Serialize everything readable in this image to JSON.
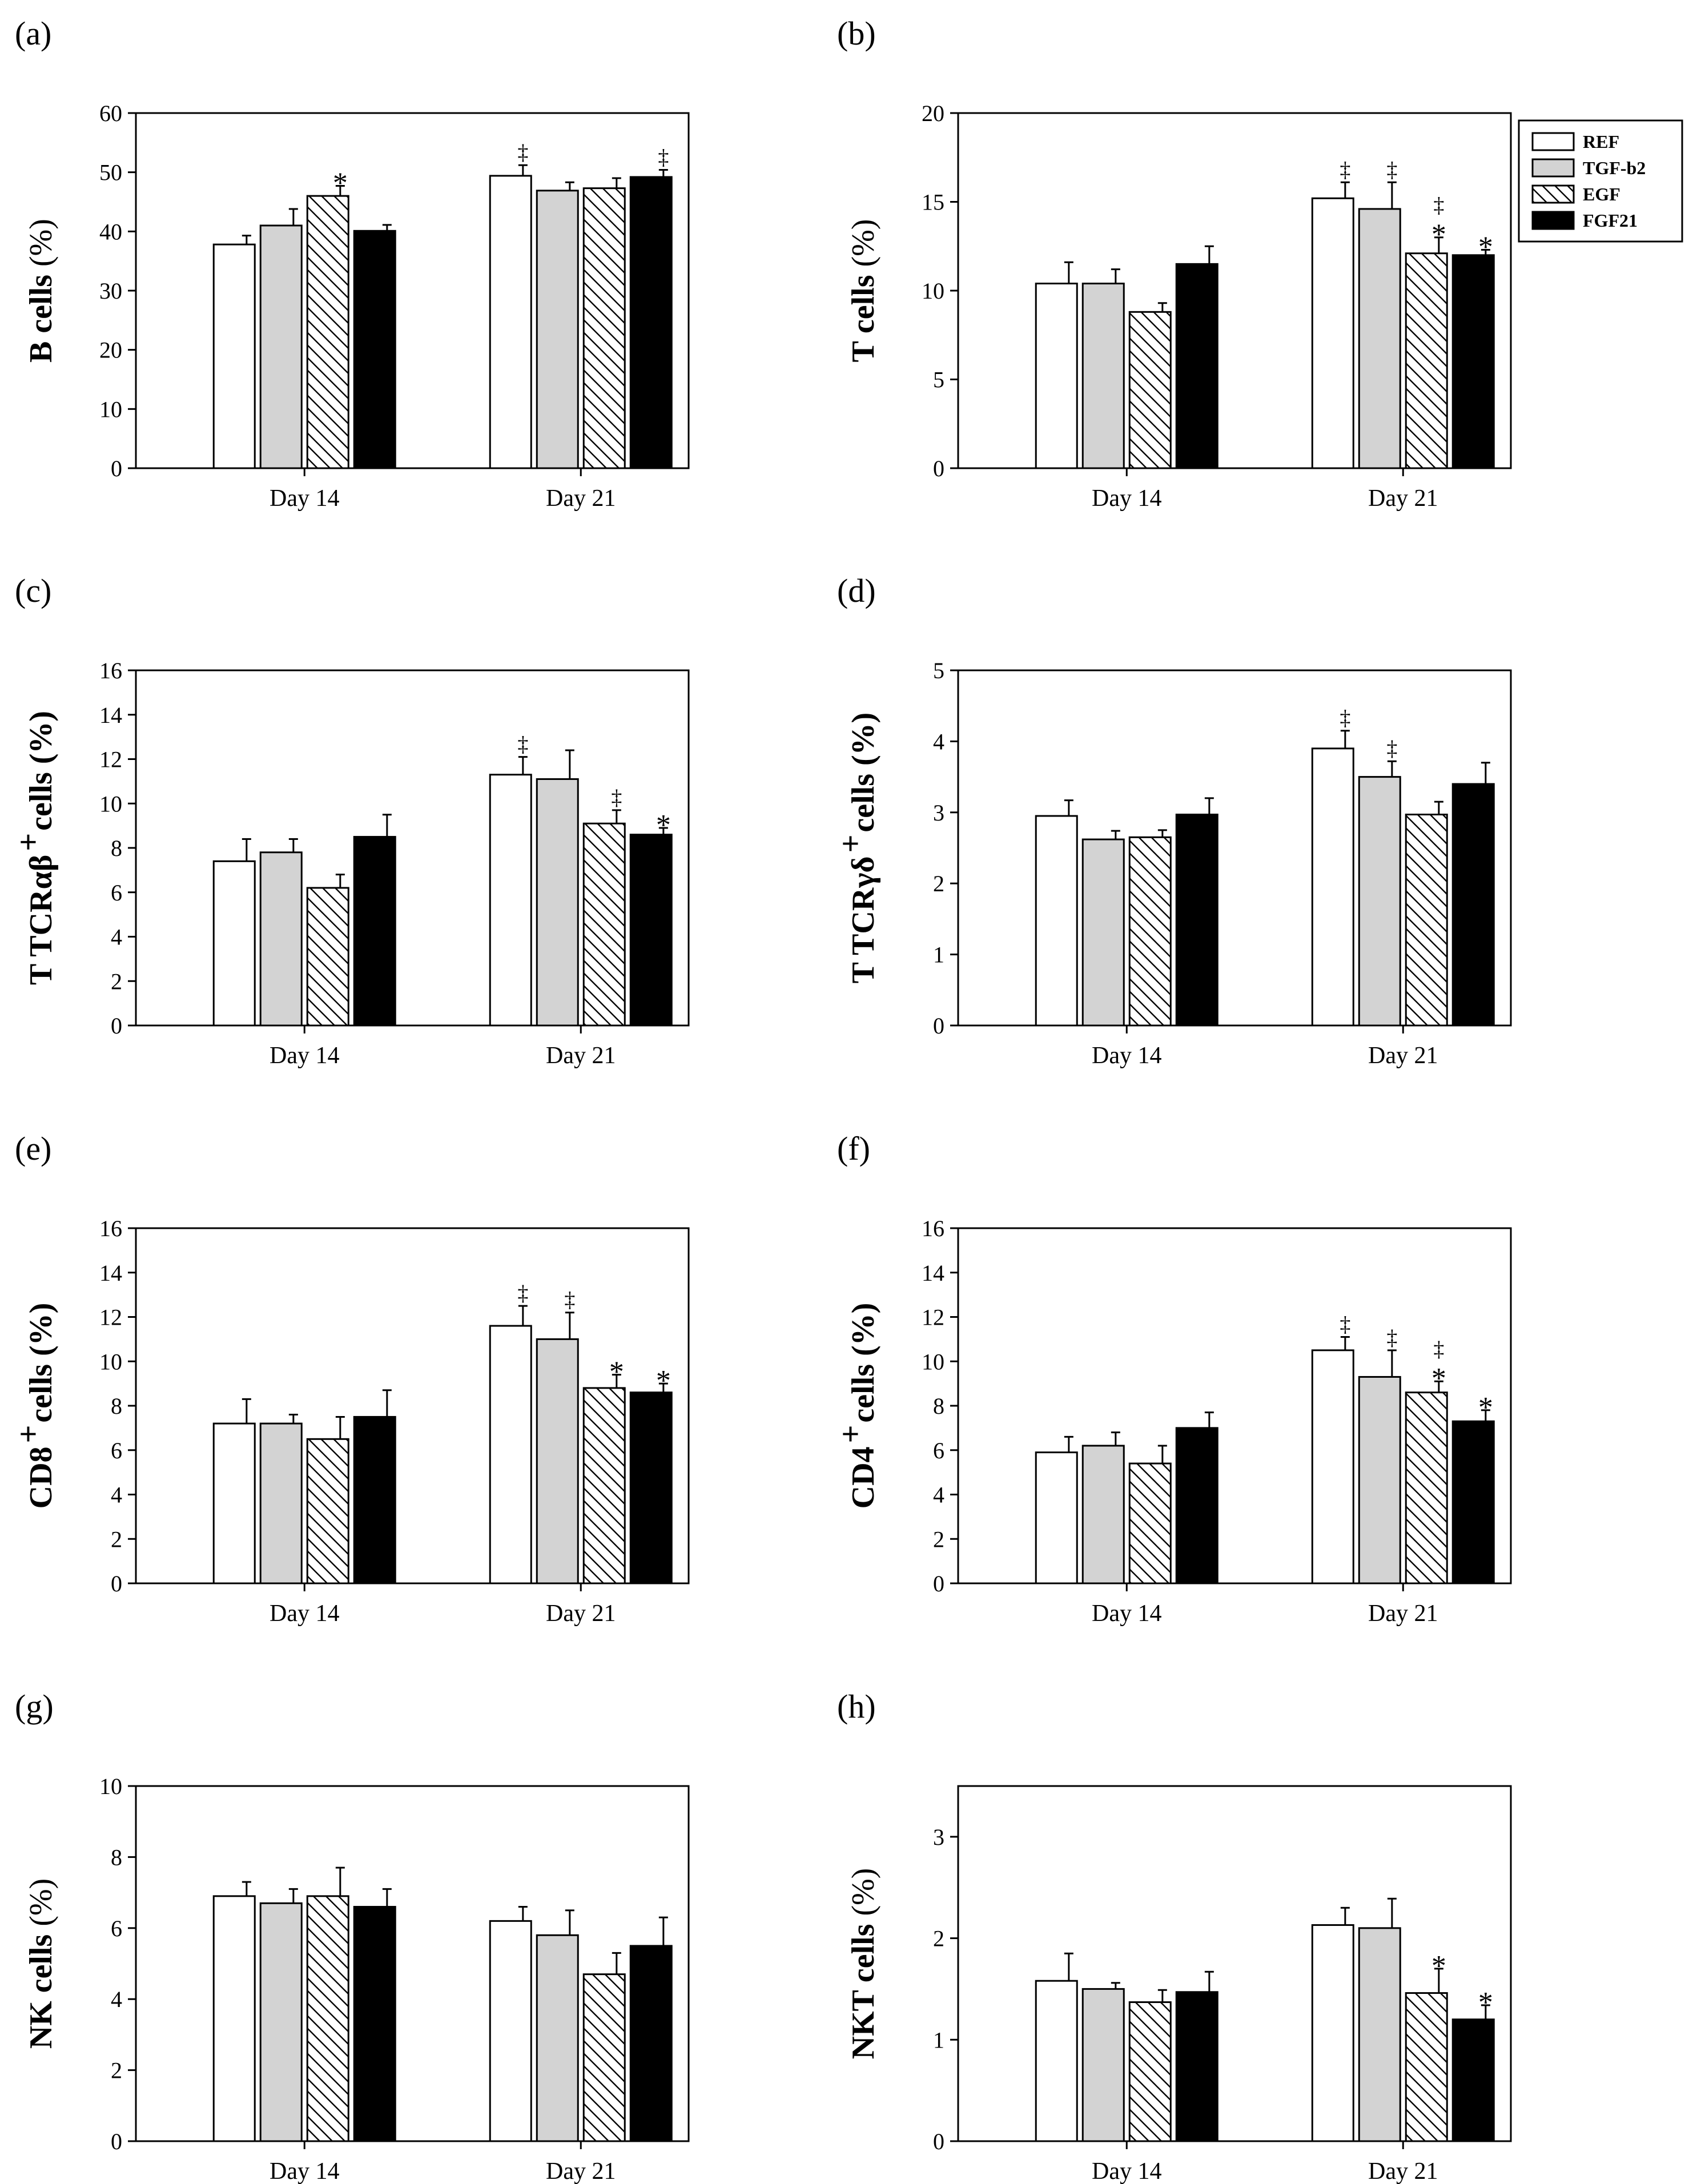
{
  "colors": {
    "REF": "#ffffff",
    "TGF-b2": "#d3d3d3",
    "EGF": "#ffffff",
    "FGF21": "#000000"
  },
  "legend": {
    "entries": [
      "REF",
      "TGF-b2",
      "EGF",
      "FGF21"
    ],
    "fill_styles": [
      "white",
      "gray",
      "hatched",
      "black"
    ]
  },
  "chart_data": [
    {
      "panel": "(a)",
      "type": "bar",
      "title": "",
      "xlabel": "",
      "ylabel": "B cells",
      "ylabel_sup": "",
      "ylabel_unit": " (%)",
      "categories": [
        "Day 14",
        "Day 21"
      ],
      "ylim": [
        0,
        60
      ],
      "yticks": [
        0,
        10,
        20,
        30,
        40,
        50,
        60
      ],
      "series": [
        {
          "name": "REF",
          "values": [
            37.8,
            49.4
          ],
          "errors": [
            1.5,
            1.8
          ]
        },
        {
          "name": "TGF-b2",
          "values": [
            41.0,
            46.9
          ],
          "errors": [
            2.8,
            1.4
          ]
        },
        {
          "name": "EGF",
          "values": [
            46.0,
            47.3
          ],
          "errors": [
            1.7,
            1.7
          ]
        },
        {
          "name": "FGF21",
          "values": [
            40.1,
            49.2
          ],
          "errors": [
            1.0,
            1.2
          ]
        }
      ],
      "annotations": [
        {
          "category": 0,
          "series": 2,
          "marks": [
            "*"
          ]
        },
        {
          "category": 1,
          "series": 0,
          "marks": [
            "‡"
          ]
        },
        {
          "category": 1,
          "series": 3,
          "marks": [
            "‡"
          ]
        }
      ]
    },
    {
      "panel": "(b)",
      "type": "bar",
      "title": "",
      "xlabel": "",
      "ylabel": "T cells",
      "ylabel_sup": "",
      "ylabel_unit": " (%)",
      "categories": [
        "Day 14",
        "Day 21"
      ],
      "ylim": [
        0,
        20
      ],
      "yticks": [
        0,
        5,
        10,
        15,
        20
      ],
      "series": [
        {
          "name": "REF",
          "values": [
            10.4,
            15.2
          ],
          "errors": [
            1.2,
            0.9
          ]
        },
        {
          "name": "TGF-b2",
          "values": [
            10.4,
            14.6
          ],
          "errors": [
            0.8,
            1.5
          ]
        },
        {
          "name": "EGF",
          "values": [
            8.8,
            12.1
          ],
          "errors": [
            0.5,
            0.9
          ]
        },
        {
          "name": "FGF21",
          "values": [
            11.5,
            12.0
          ],
          "errors": [
            1.0,
            0.3
          ]
        }
      ],
      "annotations": [
        {
          "category": 1,
          "series": 0,
          "marks": [
            "‡"
          ]
        },
        {
          "category": 1,
          "series": 1,
          "marks": [
            "‡"
          ]
        },
        {
          "category": 1,
          "series": 2,
          "marks": [
            "*",
            "‡"
          ]
        },
        {
          "category": 1,
          "series": 3,
          "marks": [
            "*"
          ]
        }
      ]
    },
    {
      "panel": "(c)",
      "type": "bar",
      "title": "",
      "xlabel": "",
      "ylabel": "T TCRαβ",
      "ylabel_sup": "+",
      "ylabel_unit": "cells (%)",
      "categories": [
        "Day 14",
        "Day 21"
      ],
      "ylim": [
        0,
        16
      ],
      "yticks": [
        0,
        2,
        4,
        6,
        8,
        10,
        12,
        14,
        16
      ],
      "series": [
        {
          "name": "REF",
          "values": [
            7.4,
            11.3
          ],
          "errors": [
            1.0,
            0.8
          ]
        },
        {
          "name": "TGF-b2",
          "values": [
            7.8,
            11.1
          ],
          "errors": [
            0.6,
            1.3
          ]
        },
        {
          "name": "EGF",
          "values": [
            6.2,
            9.1
          ],
          "errors": [
            0.6,
            0.6
          ]
        },
        {
          "name": "FGF21",
          "values": [
            8.5,
            8.6
          ],
          "errors": [
            1.0,
            0.3
          ]
        }
      ],
      "annotations": [
        {
          "category": 1,
          "series": 0,
          "marks": [
            "‡"
          ]
        },
        {
          "category": 1,
          "series": 2,
          "marks": [
            "‡"
          ]
        },
        {
          "category": 1,
          "series": 3,
          "marks": [
            "*"
          ]
        }
      ]
    },
    {
      "panel": "(d)",
      "type": "bar",
      "title": "",
      "xlabel": "",
      "ylabel": "T TCRγδ",
      "ylabel_sup": "+",
      "ylabel_unit": "cells (%)",
      "categories": [
        "Day 14",
        "Day 21"
      ],
      "ylim": [
        0,
        5
      ],
      "yticks": [
        0,
        1,
        2,
        3,
        4,
        5
      ],
      "series": [
        {
          "name": "REF",
          "values": [
            2.95,
            3.9
          ],
          "errors": [
            0.22,
            0.25
          ]
        },
        {
          "name": "TGF-b2",
          "values": [
            2.62,
            3.5
          ],
          "errors": [
            0.12,
            0.22
          ]
        },
        {
          "name": "EGF",
          "values": [
            2.65,
            2.97
          ],
          "errors": [
            0.1,
            0.18
          ]
        },
        {
          "name": "FGF21",
          "values": [
            2.97,
            3.4
          ],
          "errors": [
            0.23,
            0.3
          ]
        }
      ],
      "annotations": [
        {
          "category": 1,
          "series": 0,
          "marks": [
            "‡"
          ]
        },
        {
          "category": 1,
          "series": 1,
          "marks": [
            "‡"
          ]
        }
      ]
    },
    {
      "panel": "(e)",
      "type": "bar",
      "title": "",
      "xlabel": "",
      "ylabel": "CD8",
      "ylabel_sup": "+",
      "ylabel_unit": "cells (%)",
      "categories": [
        "Day 14",
        "Day 21"
      ],
      "ylim": [
        0,
        16
      ],
      "yticks": [
        0,
        2,
        4,
        6,
        8,
        10,
        12,
        14,
        16
      ],
      "series": [
        {
          "name": "REF",
          "values": [
            7.2,
            11.6
          ],
          "errors": [
            1.1,
            0.9
          ]
        },
        {
          "name": "TGF-b2",
          "values": [
            7.2,
            11.0
          ],
          "errors": [
            0.4,
            1.2
          ]
        },
        {
          "name": "EGF",
          "values": [
            6.5,
            8.8
          ],
          "errors": [
            1.0,
            0.6
          ]
        },
        {
          "name": "FGF21",
          "values": [
            7.5,
            8.6
          ],
          "errors": [
            1.2,
            0.4
          ]
        }
      ],
      "annotations": [
        {
          "category": 1,
          "series": 0,
          "marks": [
            "‡"
          ]
        },
        {
          "category": 1,
          "series": 1,
          "marks": [
            "‡"
          ]
        },
        {
          "category": 1,
          "series": 2,
          "marks": [
            "*"
          ]
        },
        {
          "category": 1,
          "series": 3,
          "marks": [
            "*"
          ]
        }
      ]
    },
    {
      "panel": "(f)",
      "type": "bar",
      "title": "",
      "xlabel": "",
      "ylabel": "CD4",
      "ylabel_sup": "+",
      "ylabel_unit": "cells (%)",
      "categories": [
        "Day 14",
        "Day 21"
      ],
      "ylim": [
        0,
        16
      ],
      "yticks": [
        0,
        2,
        4,
        6,
        8,
        10,
        12,
        14,
        16
      ],
      "series": [
        {
          "name": "REF",
          "values": [
            5.9,
            10.5
          ],
          "errors": [
            0.7,
            0.6
          ]
        },
        {
          "name": "TGF-b2",
          "values": [
            6.2,
            9.3
          ],
          "errors": [
            0.6,
            1.2
          ]
        },
        {
          "name": "EGF",
          "values": [
            5.4,
            8.6
          ],
          "errors": [
            0.8,
            0.5
          ]
        },
        {
          "name": "FGF21",
          "values": [
            7.0,
            7.3
          ],
          "errors": [
            0.7,
            0.5
          ]
        }
      ],
      "annotations": [
        {
          "category": 1,
          "series": 0,
          "marks": [
            "‡"
          ]
        },
        {
          "category": 1,
          "series": 1,
          "marks": [
            "‡"
          ]
        },
        {
          "category": 1,
          "series": 2,
          "marks": [
            "*",
            "‡"
          ]
        },
        {
          "category": 1,
          "series": 3,
          "marks": [
            "*"
          ]
        }
      ]
    },
    {
      "panel": "(g)",
      "type": "bar",
      "title": "",
      "xlabel": "",
      "ylabel": "NK cells",
      "ylabel_sup": "",
      "ylabel_unit": " (%)",
      "categories": [
        "Day 14",
        "Day 21"
      ],
      "ylim": [
        0,
        10
      ],
      "yticks": [
        0,
        2,
        4,
        6,
        8,
        10
      ],
      "series": [
        {
          "name": "REF",
          "values": [
            6.9,
            6.2
          ],
          "errors": [
            0.4,
            0.4
          ]
        },
        {
          "name": "TGF-b2",
          "values": [
            6.7,
            5.8
          ],
          "errors": [
            0.4,
            0.7
          ]
        },
        {
          "name": "EGF",
          "values": [
            6.9,
            4.7
          ],
          "errors": [
            0.8,
            0.6
          ]
        },
        {
          "name": "FGF21",
          "values": [
            6.6,
            5.5
          ],
          "errors": [
            0.5,
            0.8
          ]
        }
      ],
      "annotations": []
    },
    {
      "panel": "(h)",
      "type": "bar",
      "title": "",
      "xlabel": "",
      "ylabel": "NKT cells",
      "ylabel_sup": "",
      "ylabel_unit": " (%)",
      "categories": [
        "Day 14",
        "Day 21"
      ],
      "ylim": [
        0,
        3.5
      ],
      "yticks": [
        0,
        1,
        2,
        3
      ],
      "series": [
        {
          "name": "REF",
          "values": [
            1.58,
            2.13
          ],
          "errors": [
            0.27,
            0.17
          ]
        },
        {
          "name": "TGF-b2",
          "values": [
            1.5,
            2.1
          ],
          "errors": [
            0.06,
            0.29
          ]
        },
        {
          "name": "EGF",
          "values": [
            1.37,
            1.46
          ],
          "errors": [
            0.12,
            0.24
          ]
        },
        {
          "name": "FGF21",
          "values": [
            1.47,
            1.2
          ],
          "errors": [
            0.2,
            0.14
          ]
        }
      ],
      "annotations": [
        {
          "category": 1,
          "series": 2,
          "marks": [
            "*"
          ]
        },
        {
          "category": 1,
          "series": 3,
          "marks": [
            "*"
          ]
        }
      ]
    }
  ]
}
